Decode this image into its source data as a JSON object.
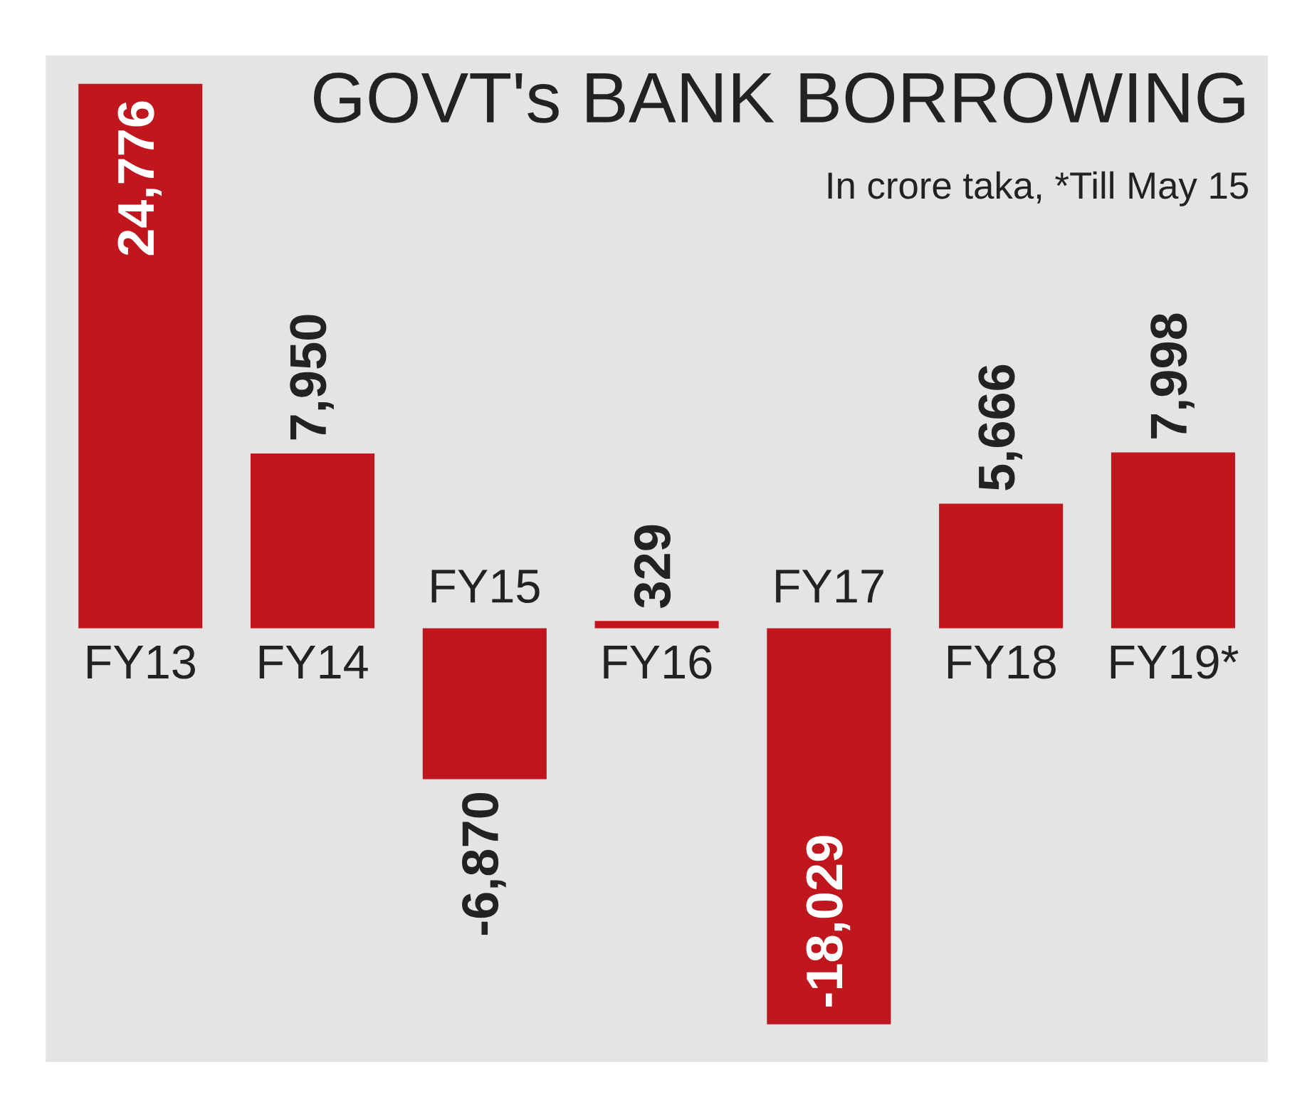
{
  "chart_data": {
    "type": "bar",
    "title": "GOVT's BANK BORROWING",
    "subtitle": "In crore taka, *Till May 15",
    "categories": [
      "FY13",
      "FY14",
      "FY15",
      "FY16",
      "FY17",
      "FY18",
      "FY19*"
    ],
    "values": [
      24776,
      7950,
      -6870,
      329,
      -18029,
      5666,
      7998
    ],
    "value_labels": [
      "24,776",
      "7,950",
      "-6,870",
      "329",
      "-18,029",
      "5,666",
      "7,998"
    ],
    "color": "#c0161d"
  }
}
